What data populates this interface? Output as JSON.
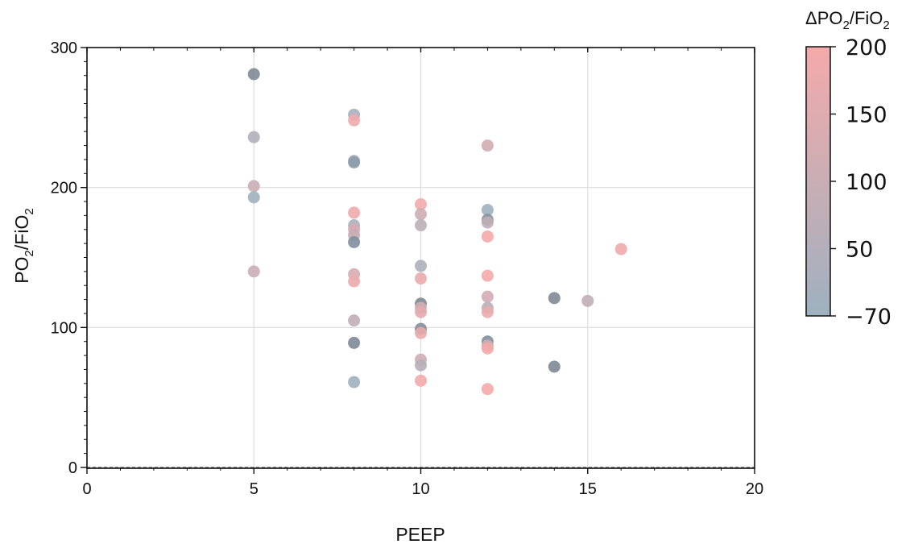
{
  "chart_data": {
    "type": "scatter",
    "xlabel": "PEEP",
    "ylabel_main": "PO",
    "ylabel_sub1": "2",
    "ylabel_mid": "/FiO",
    "ylabel_sub2": "2",
    "xlim": [
      0,
      20
    ],
    "ylim": [
      0,
      300
    ],
    "x_ticks": [
      "0",
      "5",
      "10",
      "15",
      "20"
    ],
    "y_ticks": [
      "0",
      "100",
      "200",
      "300"
    ],
    "grid": true,
    "colorbar": {
      "label_main": "ΔPO",
      "label_sub1": "2",
      "label_mid": "/FiO",
      "label_sub2": "2",
      "ticks": [
        "200",
        "150",
        "100",
        "50",
        "−70"
      ],
      "low_color": "#9eb1bf",
      "high_color": "#f4aaaa",
      "dark_color": "#7d8a96"
    },
    "points": [
      {
        "x": 5,
        "y": 281,
        "c": -70
      },
      {
        "x": 5,
        "y": 236,
        "c": 50
      },
      {
        "x": 5,
        "y": 201,
        "c": 100
      },
      {
        "x": 5,
        "y": 193,
        "c": 0
      },
      {
        "x": 5,
        "y": 140,
        "c": 100
      },
      {
        "x": 8,
        "y": 252,
        "c": 20
      },
      {
        "x": 8,
        "y": 248,
        "c": 190
      },
      {
        "x": 8,
        "y": 219,
        "c": 20
      },
      {
        "x": 8,
        "y": 218,
        "c": -40
      },
      {
        "x": 8,
        "y": 182,
        "c": 190
      },
      {
        "x": 8,
        "y": 173,
        "c": 30
      },
      {
        "x": 8,
        "y": 170,
        "c": 130
      },
      {
        "x": 8,
        "y": 166,
        "c": 90
      },
      {
        "x": 8,
        "y": 161,
        "c": -60
      },
      {
        "x": 8,
        "y": 138,
        "c": 130
      },
      {
        "x": 8,
        "y": 133,
        "c": 180
      },
      {
        "x": 8,
        "y": 105,
        "c": 80
      },
      {
        "x": 8,
        "y": 89,
        "c": -70
      },
      {
        "x": 8,
        "y": 61,
        "c": 0
      },
      {
        "x": 10,
        "y": 188,
        "c": 195
      },
      {
        "x": 10,
        "y": 181,
        "c": 110
      },
      {
        "x": 10,
        "y": 173,
        "c": 70
      },
      {
        "x": 10,
        "y": 144,
        "c": 30
      },
      {
        "x": 10,
        "y": 135,
        "c": 180
      },
      {
        "x": 10,
        "y": 117,
        "c": -70
      },
      {
        "x": 10,
        "y": 114,
        "c": 120
      },
      {
        "x": 10,
        "y": 111,
        "c": 160
      },
      {
        "x": 10,
        "y": 99,
        "c": -60
      },
      {
        "x": 10,
        "y": 96,
        "c": 180
      },
      {
        "x": 10,
        "y": 77,
        "c": 120
      },
      {
        "x": 10,
        "y": 73,
        "c": 60
      },
      {
        "x": 10,
        "y": 62,
        "c": 200
      },
      {
        "x": 12,
        "y": 230,
        "c": 120
      },
      {
        "x": 12,
        "y": 184,
        "c": 0
      },
      {
        "x": 12,
        "y": 177,
        "c": -50
      },
      {
        "x": 12,
        "y": 175,
        "c": 80
      },
      {
        "x": 12,
        "y": 165,
        "c": 200
      },
      {
        "x": 12,
        "y": 137,
        "c": 200
      },
      {
        "x": 12,
        "y": 122,
        "c": 120
      },
      {
        "x": 12,
        "y": 114,
        "c": 60
      },
      {
        "x": 12,
        "y": 111,
        "c": 180
      },
      {
        "x": 12,
        "y": 90,
        "c": -60
      },
      {
        "x": 12,
        "y": 87,
        "c": 120
      },
      {
        "x": 12,
        "y": 85,
        "c": 200
      },
      {
        "x": 12,
        "y": 56,
        "c": 200
      },
      {
        "x": 14,
        "y": 121,
        "c": -70
      },
      {
        "x": 14,
        "y": 72,
        "c": -70
      },
      {
        "x": 15,
        "y": 119,
        "c": 80
      },
      {
        "x": 16,
        "y": 156,
        "c": 190
      }
    ]
  }
}
